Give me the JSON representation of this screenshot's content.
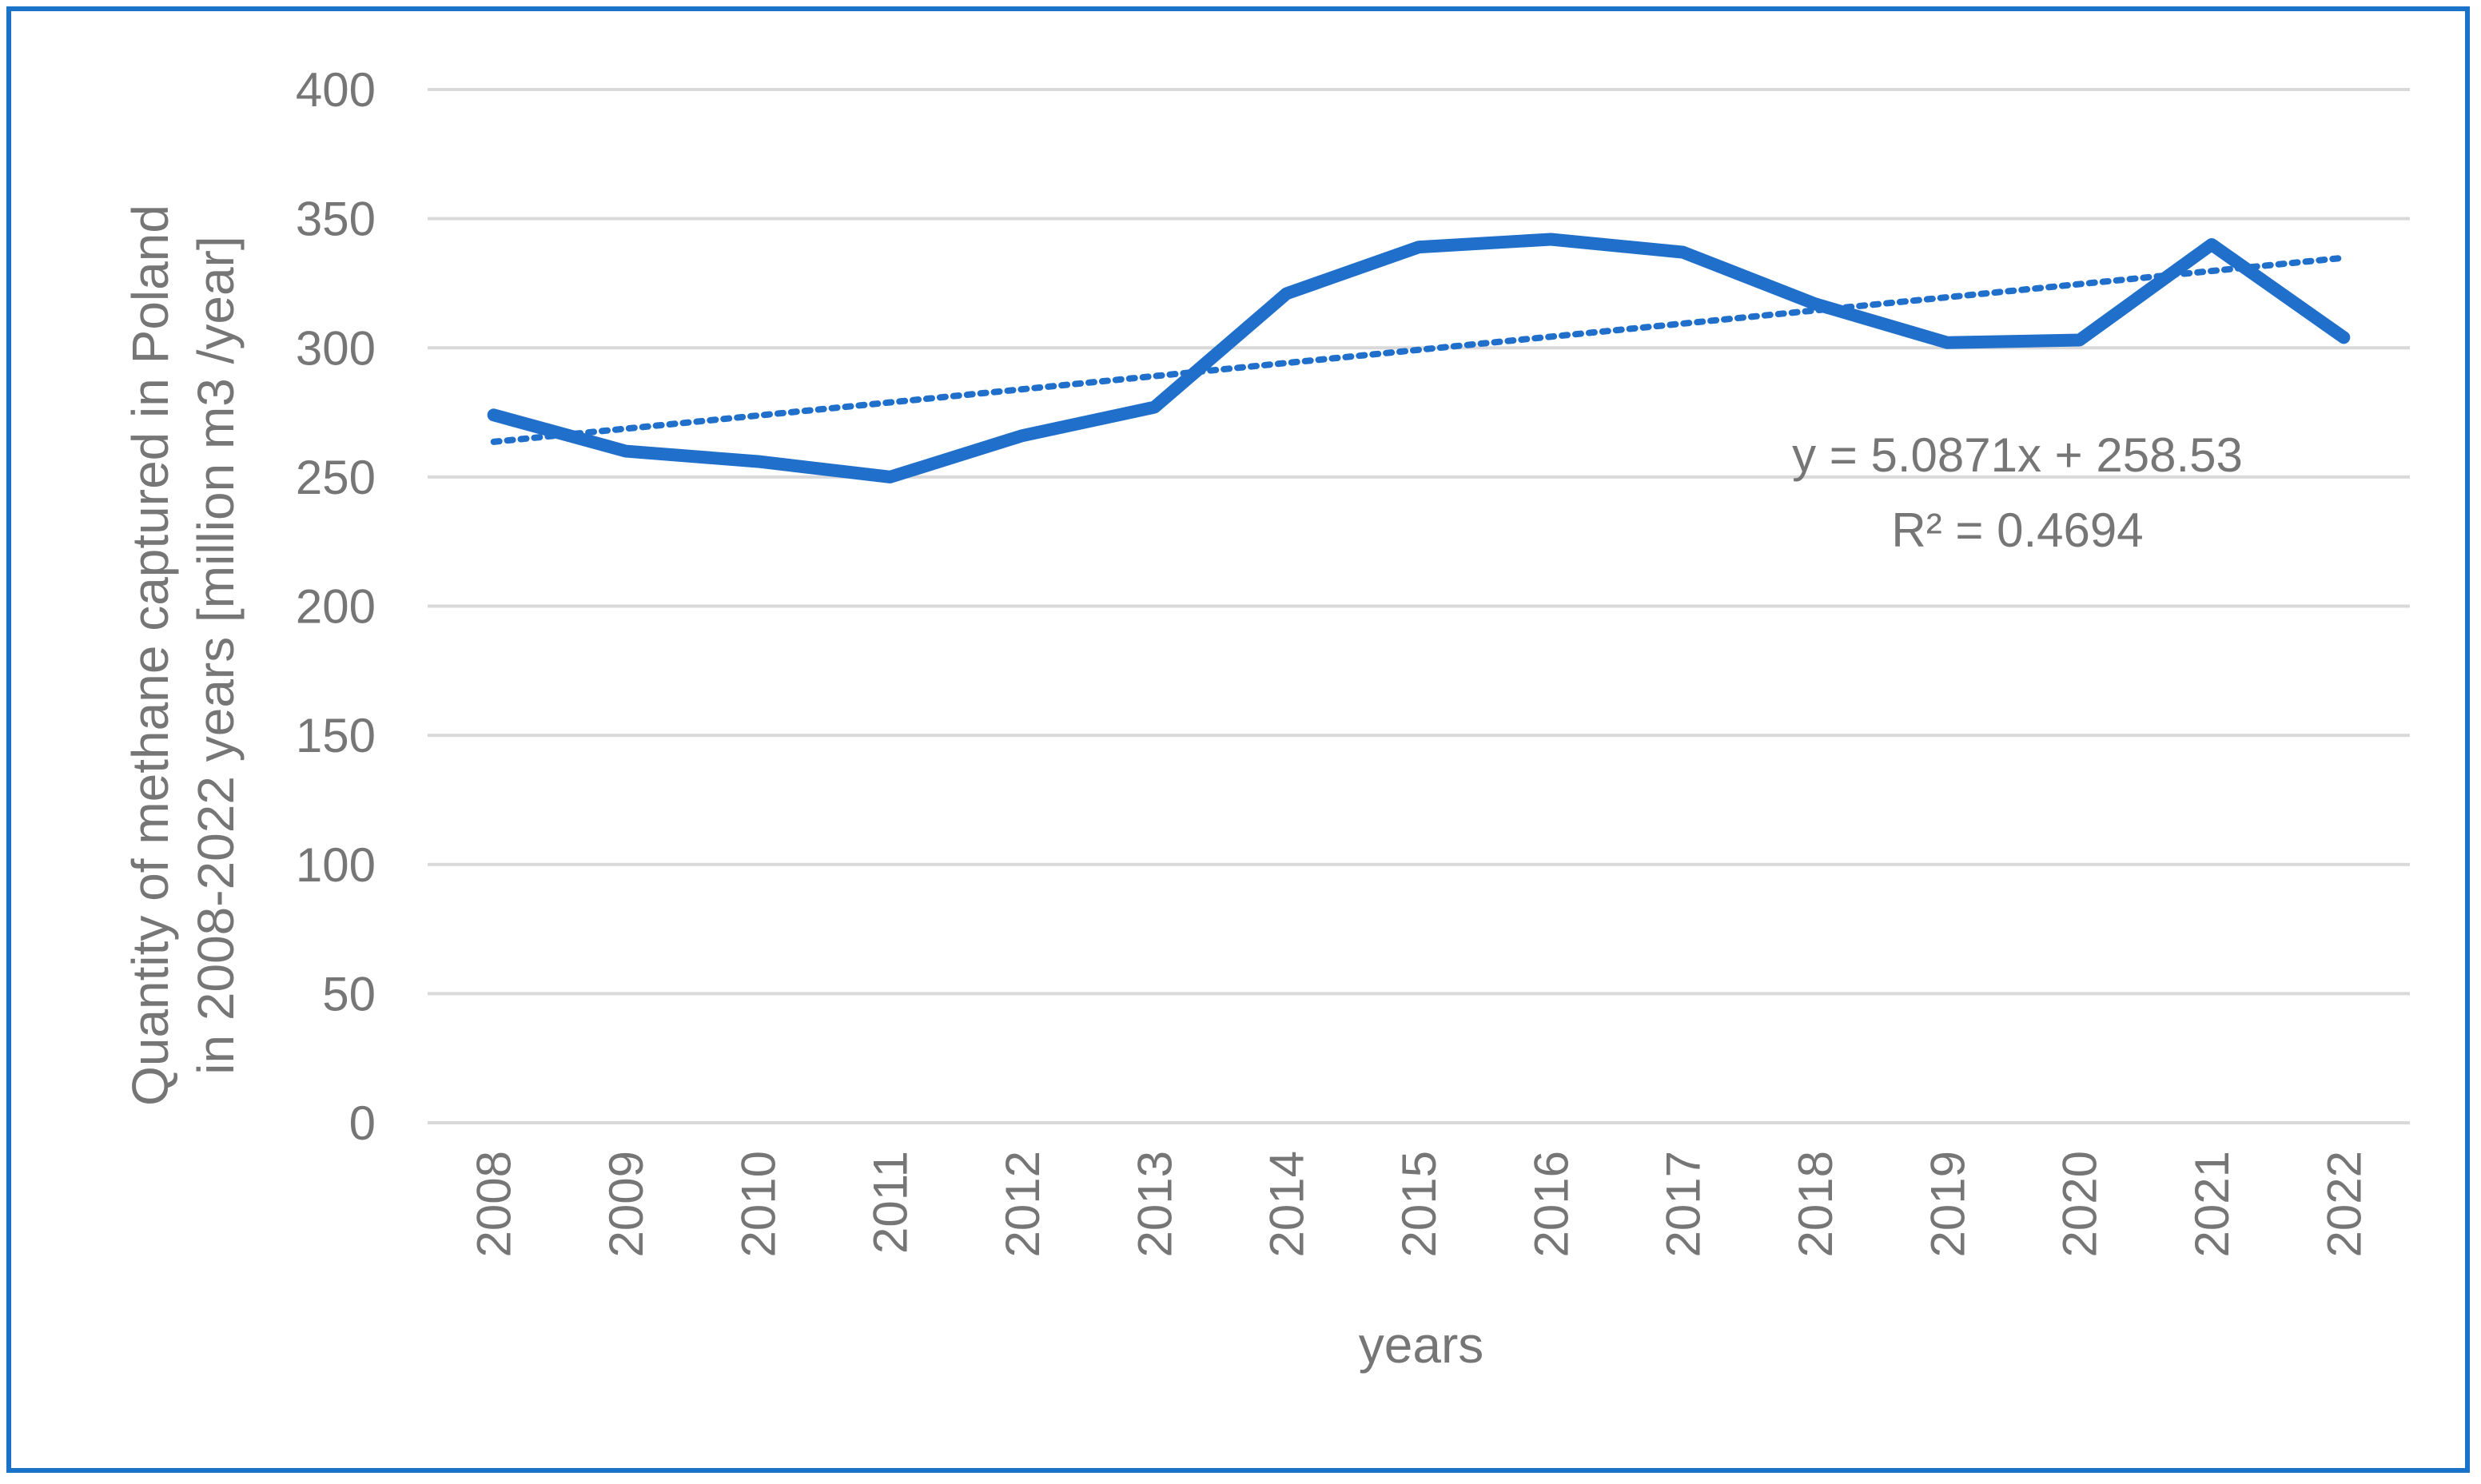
{
  "chart_data": {
    "type": "line",
    "title": "",
    "xlabel": "years",
    "ylabel_lines": [
      "Quantity of methane captured in Poland",
      "in 2008-2022 years [million m3 /year]"
    ],
    "categories": [
      "2008",
      "2009",
      "2010",
      "2011",
      "2012",
      "2013",
      "2014",
      "2015",
      "2016",
      "2017",
      "2018",
      "2019",
      "2020",
      "2021",
      "2022"
    ],
    "series": [
      {
        "name": "methane captured",
        "color": "#1f6fcb",
        "values": [
          274,
          260,
          256,
          250,
          266,
          277,
          321,
          339,
          342,
          337,
          317,
          302,
          303,
          340,
          304
        ]
      }
    ],
    "trendline": {
      "type": "linear",
      "slope": 5.0871,
      "intercept": 258.53,
      "equation": "y = 5.0871x + 258.53",
      "r2_label": "R² = 0.4694",
      "color": "#1f6fcb",
      "style": "dotted"
    },
    "yticks": [
      0,
      50,
      100,
      150,
      200,
      250,
      300,
      350,
      400
    ],
    "ylim": [
      0,
      400
    ],
    "grid": true,
    "frame_color": "#1a73c8"
  }
}
